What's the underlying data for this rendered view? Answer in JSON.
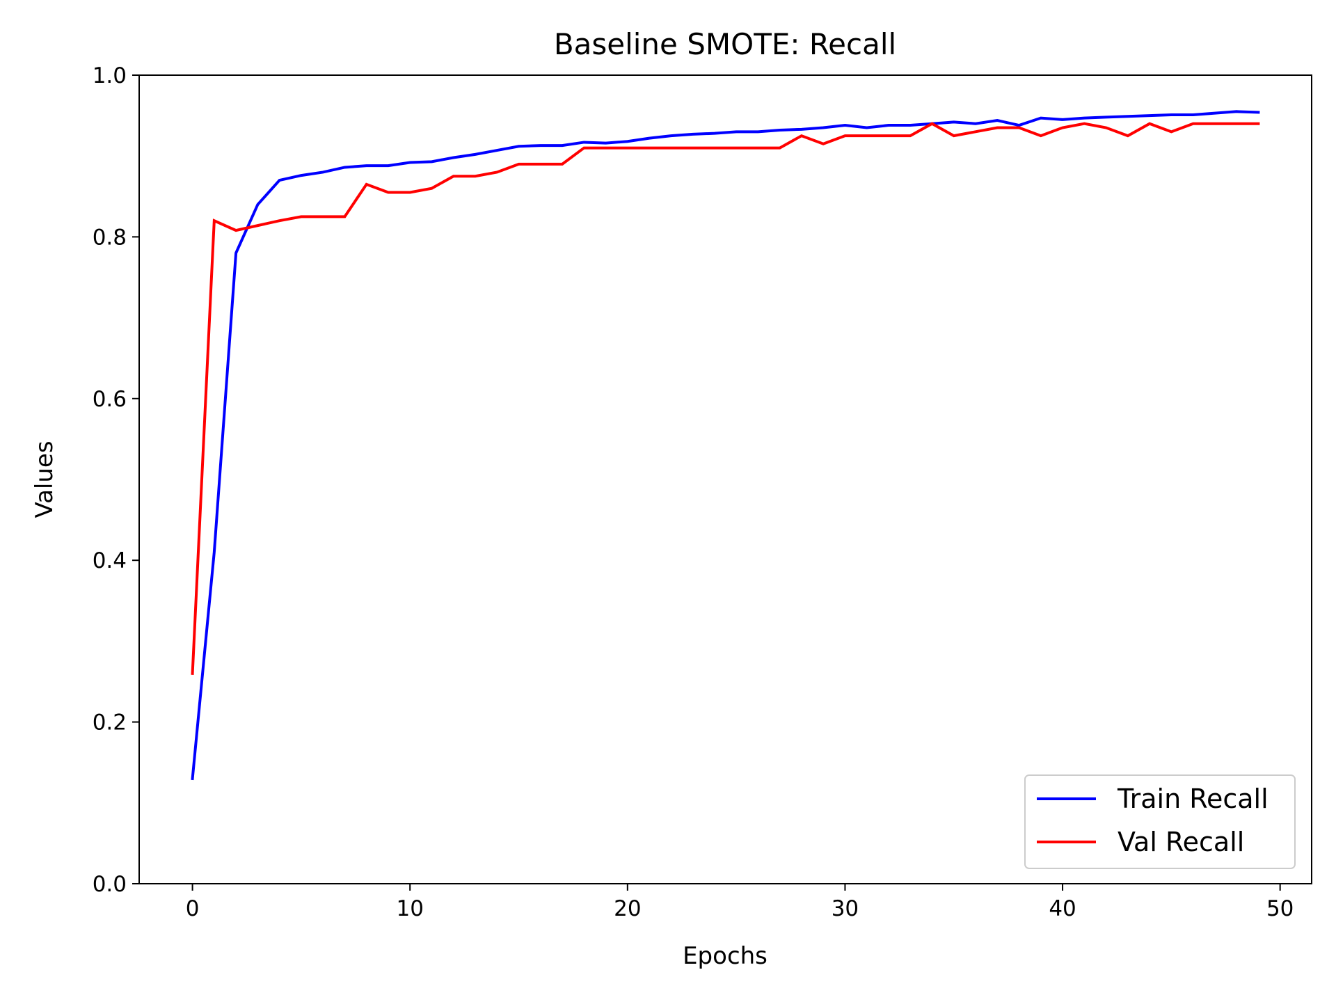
{
  "chart_data": {
    "type": "line",
    "title": "Baseline SMOTE: Recall",
    "xlabel": "Epochs",
    "ylabel": "Values",
    "xlim": [
      -2.45,
      51.45
    ],
    "ylim": [
      0.0,
      1.0
    ],
    "xticks": [
      0,
      10,
      20,
      30,
      40,
      50
    ],
    "yticks": [
      0.0,
      0.2,
      0.4,
      0.6,
      0.8,
      1.0
    ],
    "xtick_labels": [
      "0",
      "10",
      "20",
      "30",
      "40",
      "50"
    ],
    "ytick_labels": [
      "0.0",
      "0.2",
      "0.4",
      "0.6",
      "0.8",
      "1.0"
    ],
    "grid": false,
    "legend_position": "lower-right",
    "x": [
      0,
      1,
      2,
      3,
      4,
      5,
      6,
      7,
      8,
      9,
      10,
      11,
      12,
      13,
      14,
      15,
      16,
      17,
      18,
      19,
      20,
      21,
      22,
      23,
      24,
      25,
      26,
      27,
      28,
      29,
      30,
      31,
      32,
      33,
      34,
      35,
      36,
      37,
      38,
      39,
      40,
      41,
      42,
      43,
      44,
      45,
      46,
      47,
      48,
      49
    ],
    "series": [
      {
        "name": "Train Recall",
        "color": "#0000ff",
        "values": [
          0.13,
          0.41,
          0.78,
          0.84,
          0.87,
          0.876,
          0.88,
          0.886,
          0.888,
          0.888,
          0.892,
          0.893,
          0.898,
          0.902,
          0.907,
          0.912,
          0.913,
          0.913,
          0.917,
          0.916,
          0.918,
          0.922,
          0.925,
          0.927,
          0.928,
          0.93,
          0.93,
          0.932,
          0.933,
          0.935,
          0.938,
          0.935,
          0.938,
          0.938,
          0.94,
          0.942,
          0.94,
          0.944,
          0.938,
          0.947,
          0.945,
          0.947,
          0.948,
          0.949,
          0.95,
          0.951,
          0.951,
          0.953,
          0.955,
          0.954
        ]
      },
      {
        "name": "Val Recall",
        "color": "#ff0000",
        "values": [
          0.26,
          0.82,
          0.808,
          0.814,
          0.82,
          0.825,
          0.825,
          0.825,
          0.865,
          0.855,
          0.855,
          0.86,
          0.875,
          0.875,
          0.88,
          0.89,
          0.89,
          0.89,
          0.91,
          0.91,
          0.91,
          0.91,
          0.91,
          0.91,
          0.91,
          0.91,
          0.91,
          0.91,
          0.925,
          0.915,
          0.925,
          0.925,
          0.925,
          0.925,
          0.94,
          0.925,
          0.93,
          0.935,
          0.935,
          0.925,
          0.935,
          0.94,
          0.935,
          0.925,
          0.94,
          0.93,
          0.94,
          0.94,
          0.94,
          0.94
        ]
      }
    ]
  }
}
